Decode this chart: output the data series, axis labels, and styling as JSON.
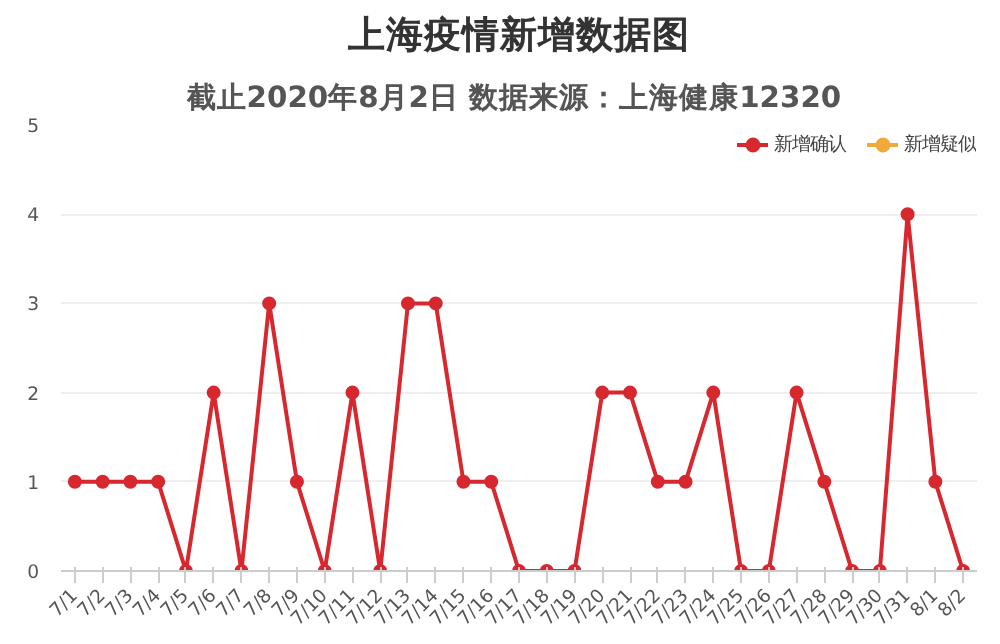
{
  "chart_data": {
    "type": "line",
    "title": "上海疫情新增数据图",
    "subtitle": "截止2020年8月2日  数据来源：上海健康12320",
    "categories": [
      "7/1",
      "7/2",
      "7/3",
      "7/4",
      "7/5",
      "7/6",
      "7/7",
      "7/8",
      "7/9",
      "7/10",
      "7/11",
      "7/12",
      "7/13",
      "7/14",
      "7/15",
      "7/16",
      "7/17",
      "7/18",
      "7/19",
      "7/20",
      "7/21",
      "7/22",
      "7/23",
      "7/24",
      "7/25",
      "7/26",
      "7/27",
      "7/28",
      "7/29",
      "7/30",
      "7/31",
      "8/1",
      "8/2"
    ],
    "series": [
      {
        "name": "新增确认",
        "color": "#d7282f",
        "values": [
          1,
          1,
          1,
          1,
          0,
          2,
          0,
          3,
          1,
          0,
          2,
          0,
          3,
          3,
          1,
          1,
          0,
          0,
          0,
          2,
          2,
          1,
          1,
          2,
          0,
          0,
          2,
          1,
          0,
          0,
          4,
          1,
          0
        ]
      },
      {
        "name": "新增疑似",
        "color": "#f2a93b",
        "values": [
          null,
          null,
          null,
          null,
          null,
          null,
          null,
          null,
          null,
          null,
          null,
          null,
          null,
          null,
          null,
          null,
          null,
          null,
          null,
          null,
          null,
          null,
          null,
          null,
          null,
          null,
          null,
          null,
          null,
          null,
          null,
          null,
          null
        ]
      }
    ],
    "ylim": [
      0,
      5
    ],
    "yticks": [
      0,
      1,
      2,
      3,
      4,
      5
    ],
    "grid": "y",
    "legend": "top right",
    "marker": "circle",
    "line_style": "solid"
  }
}
